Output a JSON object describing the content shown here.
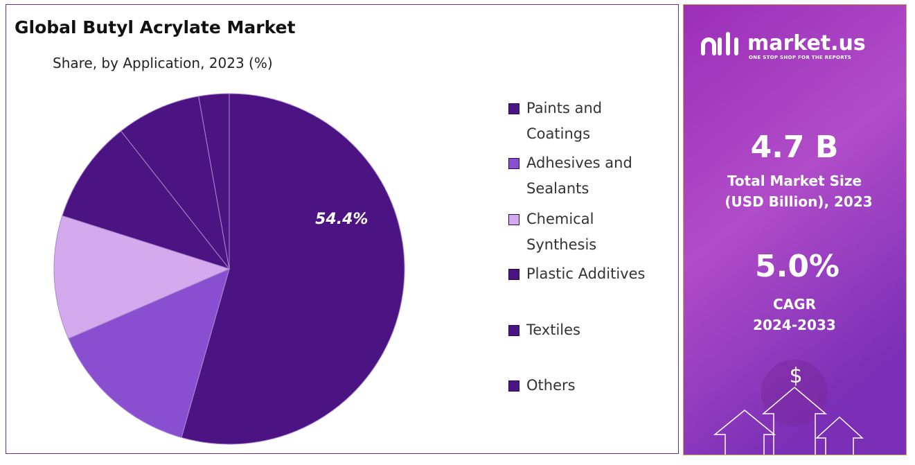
{
  "chart_data": {
    "type": "pie",
    "title": "Global Butyl Acrylate Market",
    "subtitle": "Share, by Application, 2023 (%)",
    "categories": [
      "Paints and Coatings",
      "Adhesives and Sealants",
      "Chemical Synthesis",
      "Plastic Additives",
      "Textiles",
      "Others"
    ],
    "values": [
      54.4,
      14.1,
      11.4,
      9.5,
      7.8,
      2.8
    ],
    "value_labels": [
      "54.4%",
      null,
      null,
      null,
      null,
      null
    ],
    "colors": [
      "#4c1482",
      "#8a4fd0",
      "#d4a9ee",
      "#4c1482",
      "#4c1482",
      "#4c1482"
    ]
  },
  "panel": {
    "brand": "market.us",
    "tagline": "ONE STOP SHOP FOR THE REPORTS",
    "market_size": "4.7 B",
    "market_size_label": [
      "Total Market Size",
      "(USD Billion), 2023"
    ],
    "cagr": "5.0%",
    "cagr_label": [
      "CAGR",
      "2024-2033"
    ]
  }
}
